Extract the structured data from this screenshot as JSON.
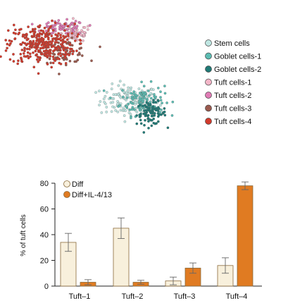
{
  "chart_data": [
    {
      "type": "scatter",
      "title": "",
      "legend": {
        "placement": "right",
        "entries": [
          {
            "label": "Stem cells",
            "color": "#bfe6e2"
          },
          {
            "label": "Goblet cells-1",
            "color": "#5cbdb3"
          },
          {
            "label": "Goblet cells-2",
            "color": "#1f7a76"
          },
          {
            "label": "Tuft cells-1",
            "color": "#f4b6c8"
          },
          {
            "label": "Tuft cells-2",
            "color": "#e07bb5"
          },
          {
            "label": "Tuft cells-3",
            "color": "#9b5a4e"
          },
          {
            "label": "Tuft cells-4",
            "color": "#d23a2c"
          }
        ]
      },
      "clusters": [
        {
          "name": "Stem cells",
          "x": 63,
          "y": -22,
          "spread_x": 8,
          "spread_y": 7,
          "n": 140
        },
        {
          "name": "Goblet cells-1",
          "x": 70,
          "y": -21,
          "spread_x": 6,
          "spread_y": 7,
          "n": 110
        },
        {
          "name": "Goblet cells-2",
          "x": 75,
          "y": -33,
          "spread_x": 4,
          "spread_y": 5,
          "n": 90
        },
        {
          "name": "Tuft cells-1",
          "x": 34,
          "y": 38,
          "spread_x": 4,
          "spread_y": 4,
          "n": 60
        },
        {
          "name": "Tuft cells-2",
          "x": 27,
          "y": 43,
          "spread_x": 6,
          "spread_y": 3,
          "n": 70
        },
        {
          "name": "Tuft cells-3",
          "x": 28,
          "y": 22,
          "spread_x": 6,
          "spread_y": 5,
          "n": 70
        },
        {
          "name": "Tuft cells-4",
          "x": 15,
          "y": 28,
          "spread_x": 9,
          "spread_y": 9,
          "n": 320
        }
      ],
      "xlabel": "",
      "ylabel": "",
      "axes_visible": false,
      "grid": false
    },
    {
      "type": "bar",
      "title": "",
      "categories": [
        "Tuft–1",
        "Tuft–2",
        "Tuft–3",
        "Tuft–4"
      ],
      "series": [
        {
          "name": "Diff",
          "color": "#f8f0dc",
          "values": [
            34,
            45,
            4,
            16
          ],
          "errors": [
            7,
            8,
            3,
            6
          ]
        },
        {
          "name": "Diff+IL-4/13",
          "color": "#e07b22",
          "values": [
            3,
            3,
            14,
            78
          ],
          "errors": [
            2,
            1.5,
            4,
            3
          ]
        }
      ],
      "xlabel": "",
      "ylabel": "% of tuft cells",
      "ylim": [
        0,
        80
      ],
      "yticks": [
        "0",
        "20",
        "40",
        "60",
        "80"
      ],
      "legend_placement": "top-left",
      "grid": false
    }
  ]
}
